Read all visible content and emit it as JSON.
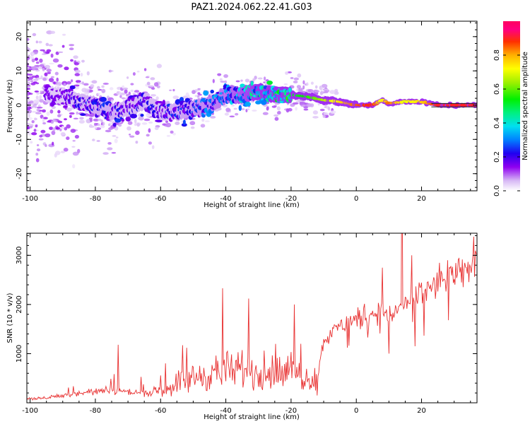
{
  "figure": {
    "title": "PAZ1.2024.062.22.41.G03"
  },
  "chart_data": [
    {
      "type": "heatmap",
      "xlabel": "Height of straight line (km)",
      "ylabel": "Frequency (Hz)",
      "xlim": [
        -101,
        37
      ],
      "ylim": [
        -25,
        24.5
      ],
      "xticks": [
        -100,
        -80,
        -60,
        -40,
        -20,
        0,
        20
      ],
      "yticks": [
        -20,
        -10,
        0,
        10,
        20
      ],
      "colorbar": {
        "label": "Normalized spectral amplitude",
        "range": [
          0,
          1
        ],
        "ticks": [
          0.0,
          0.2,
          0.4,
          0.6,
          0.8
        ],
        "colormap": "gist_ncar-like (white, violet, blue, cyan, green, yellow, orange, red, magenta)"
      },
      "ridge": {
        "description": "main spectral ridge (frequency vs height) with peak amplitude",
        "x": [
          -90,
          -85,
          -80,
          -75,
          -70,
          -65,
          -60,
          -55,
          -50,
          -45,
          -40,
          -35,
          -30,
          -25,
          -20,
          -15,
          -10,
          -5,
          0,
          5,
          8,
          10,
          15,
          20,
          25,
          30,
          35
        ],
        "y": [
          3,
          1,
          0,
          -2,
          -1,
          1,
          -2,
          -2,
          -1,
          0,
          3,
          3,
          4,
          3,
          3,
          2.5,
          1.5,
          1,
          0,
          0,
          1.5,
          0.5,
          1,
          1,
          0,
          0,
          0
        ],
        "amplitude": [
          0.15,
          0.2,
          0.22,
          0.22,
          0.2,
          0.2,
          0.2,
          0.22,
          0.25,
          0.28,
          0.3,
          0.35,
          0.4,
          0.45,
          0.5,
          0.55,
          0.65,
          0.75,
          0.85,
          0.9,
          0.7,
          0.85,
          0.7,
          0.75,
          0.9,
          0.9,
          0.9
        ]
      }
    },
    {
      "type": "line",
      "xlabel": "Height of straight line (km)",
      "ylabel": "SNR (10 * v/v)",
      "xlim": [
        -101,
        37
      ],
      "ylim": [
        0,
        3450
      ],
      "xticks": [
        -100,
        -80,
        -60,
        -40,
        -20,
        0,
        20
      ],
      "yticks": [
        1000,
        2000,
        3000
      ],
      "color": "#e83030",
      "trend": {
        "x": [
          -101,
          -95,
          -90,
          -85,
          -80,
          -75,
          -70,
          -65,
          -60,
          -55,
          -50,
          -45,
          -40,
          -35,
          -30,
          -25,
          -20,
          -15,
          -12,
          -10,
          -5,
          0,
          5,
          10,
          15,
          20,
          25,
          30,
          35,
          37
        ],
        "y": [
          80,
          100,
          150,
          200,
          230,
          250,
          220,
          200,
          250,
          400,
          500,
          600,
          650,
          620,
          600,
          620,
          600,
          550,
          450,
          1300,
          1550,
          1700,
          1850,
          1800,
          2000,
          2200,
          2450,
          2600,
          2700,
          3100
        ]
      },
      "spikes": [
        {
          "x": -73,
          "y": 1180
        },
        {
          "x": -52,
          "y": 1120
        },
        {
          "x": -41,
          "y": 2330
        },
        {
          "x": -33,
          "y": 2120
        },
        {
          "x": -19,
          "y": 2000
        },
        {
          "x": -17,
          "y": 1200
        },
        {
          "x": 8,
          "y": 2750
        },
        {
          "x": 17,
          "y": 3000
        },
        {
          "x": 28,
          "y": 2900
        },
        {
          "x": 36,
          "y": 3380
        }
      ],
      "dips": [
        {
          "x": -12,
          "y": 150
        },
        {
          "x": 10,
          "y": 1000
        },
        {
          "x": 18,
          "y": 1150
        }
      ]
    }
  ]
}
